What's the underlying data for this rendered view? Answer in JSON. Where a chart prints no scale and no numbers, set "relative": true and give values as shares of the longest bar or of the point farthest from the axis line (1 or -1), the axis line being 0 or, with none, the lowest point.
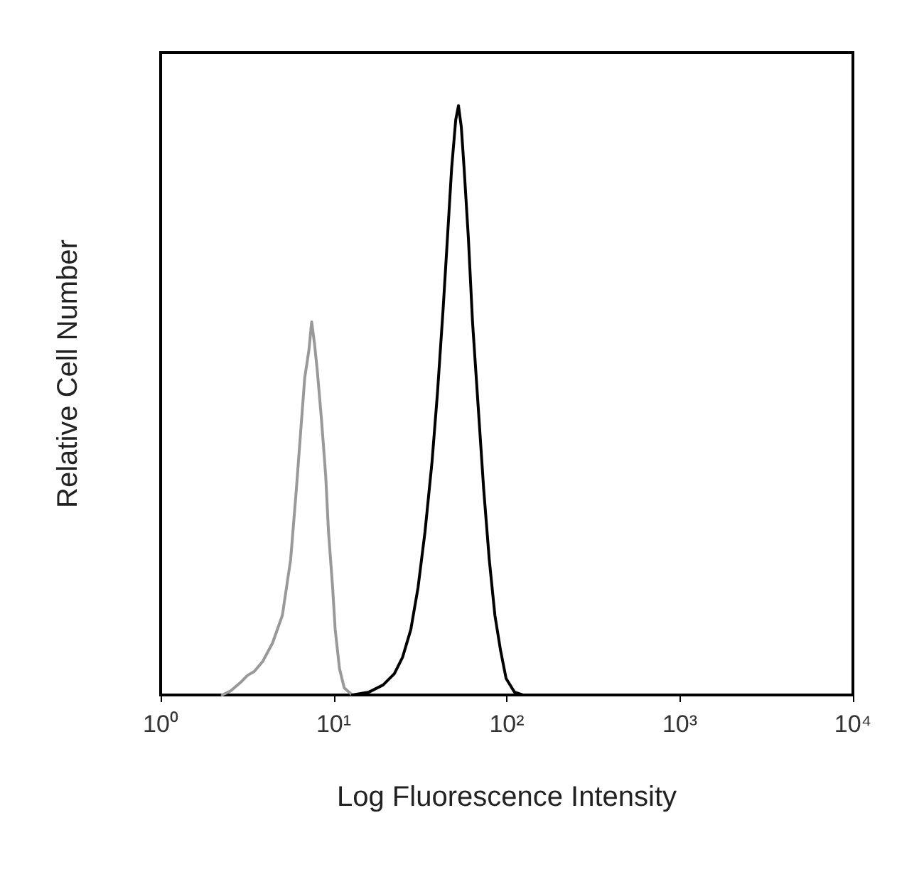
{
  "chart_data": {
    "type": "line",
    "xlabel": "Log Fluorescence Intensity",
    "ylabel": "Relative Cell Number",
    "relative": true,
    "log": "x",
    "grid": false,
    "marker": "none",
    "line_style": "solid",
    "xlim": [
      1,
      10000
    ],
    "xticks": [
      {
        "value": 1,
        "label": "10⁰"
      },
      {
        "value": 10,
        "label": "10¹"
      },
      {
        "value": 100,
        "label": "10²"
      },
      {
        "value": 1000,
        "label": "10³"
      },
      {
        "value": 10000,
        "label": "10⁴"
      }
    ],
    "series": [
      {
        "color": "#999999",
        "x": [
          2.27,
          2.54,
          2.89,
          3.17,
          3.48,
          3.89,
          4.43,
          5.05,
          5.64,
          6.08,
          6.43,
          6.8,
          7.19,
          7.46,
          7.74,
          8.04,
          8.5,
          8.99,
          9.33,
          9.86,
          10.2,
          10.8,
          11.5,
          12.8
        ],
        "values": [
          0,
          0.007,
          0.021,
          0.033,
          0.04,
          0.057,
          0.088,
          0.135,
          0.23,
          0.348,
          0.443,
          0.538,
          0.585,
          0.633,
          0.597,
          0.55,
          0.467,
          0.372,
          0.277,
          0.182,
          0.111,
          0.045,
          0.012,
          0
        ]
      },
      {
        "color": "#000000",
        "x": [
          12.8,
          16,
          19.3,
          22.4,
          25,
          27.9,
          30.7,
          33.7,
          37,
          39.8,
          42.9,
          45.4,
          48,
          50.7,
          52.6,
          54.6,
          56.7,
          60,
          63.4,
          68.3,
          73.6,
          79.2,
          85.4,
          92,
          99.1,
          110.7,
          123.8
        ],
        "values": [
          0,
          0.005,
          0.017,
          0.036,
          0.064,
          0.111,
          0.182,
          0.277,
          0.396,
          0.514,
          0.656,
          0.775,
          0.893,
          0.976,
          1,
          0.964,
          0.893,
          0.775,
          0.633,
          0.491,
          0.348,
          0.23,
          0.135,
          0.076,
          0.028,
          0.005,
          0
        ]
      }
    ]
  }
}
